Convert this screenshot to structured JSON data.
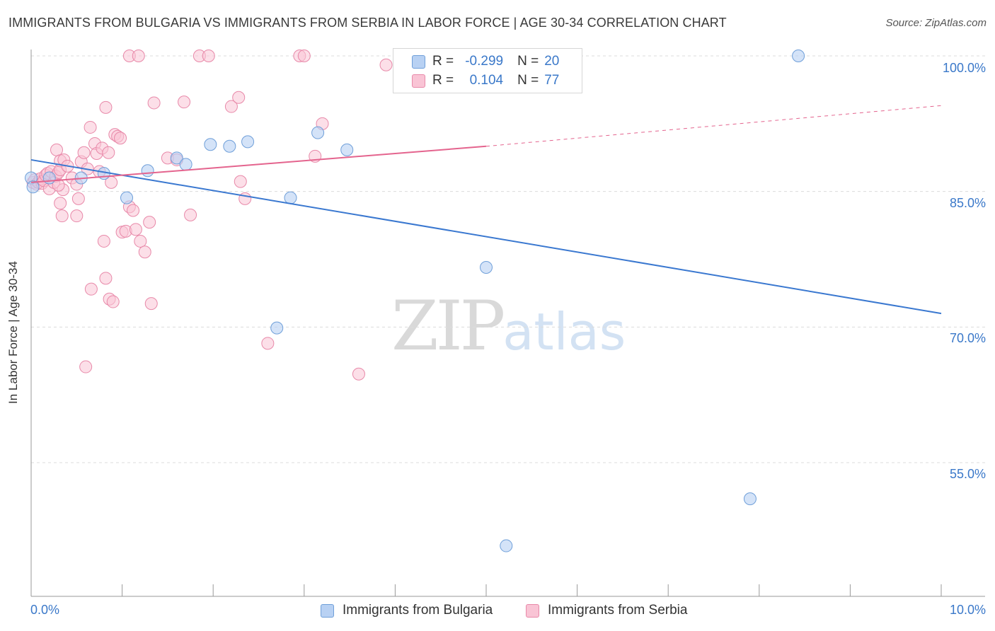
{
  "title": "IMMIGRANTS FROM BULGARIA VS IMMIGRANTS FROM SERBIA IN LABOR FORCE | AGE 30-34 CORRELATION CHART",
  "source": "Source: ZipAtlas.com",
  "watermark": {
    "zip": "ZIP",
    "atlas": "atlas"
  },
  "colors": {
    "bulgaria_fill": "#b8d1f3",
    "bulgaria_stroke": "#6f9fd9",
    "bulgaria_line": "#3a78d0",
    "serbia_fill": "#f9c4d5",
    "serbia_stroke": "#e889a9",
    "serbia_line": "#e4648e",
    "tick_text": "#3a78c9",
    "grid": "#dcdcdc"
  },
  "legend": {
    "rows": [
      {
        "r_label": "R =",
        "r_value": "-0.299",
        "n_label": "N =",
        "n_value": "20"
      },
      {
        "r_label": "R =",
        "r_value": "0.104",
        "n_label": "N =",
        "n_value": "77"
      }
    ]
  },
  "bottom_legend": {
    "bulgaria": "Immigrants from Bulgaria",
    "serbia": "Immigrants from Serbia"
  },
  "chart_data": {
    "type": "scatter",
    "title": "IMMIGRANTS FROM BULGARIA VS IMMIGRANTS FROM SERBIA IN LABOR FORCE | AGE 30-34 CORRELATION CHART",
    "xlabel": "",
    "ylabel": "In Labor Force | Age 30-34",
    "xlim": [
      0,
      10
    ],
    "ylim": [
      40,
      101
    ],
    "x_ticks": [
      "0.0%",
      "10.0%"
    ],
    "y_ticks": [
      "100.0%",
      "85.0%",
      "70.0%",
      "55.0%"
    ],
    "grid": true,
    "series": [
      {
        "name": "Immigrants from Bulgaria",
        "points": [
          [
            0.0,
            86.5
          ],
          [
            0.02,
            85.5
          ],
          [
            0.2,
            86.5
          ],
          [
            0.55,
            86.5
          ],
          [
            0.8,
            87.0
          ],
          [
            1.05,
            84.3
          ],
          [
            1.28,
            87.3
          ],
          [
            1.6,
            88.7
          ],
          [
            1.7,
            88.0
          ],
          [
            1.97,
            90.2
          ],
          [
            2.18,
            90.0
          ],
          [
            2.38,
            90.5
          ],
          [
            2.7,
            69.9
          ],
          [
            2.85,
            84.3
          ],
          [
            3.15,
            91.5
          ],
          [
            3.47,
            89.6
          ],
          [
            5.0,
            76.6
          ],
          [
            5.22,
            45.8
          ],
          [
            7.9,
            51.0
          ],
          [
            8.43,
            100.0
          ]
        ],
        "trend": {
          "x": [
            0.0,
            10.0
          ],
          "y": [
            88.5,
            71.5
          ]
        }
      },
      {
        "name": "Immigrants from Serbia",
        "points": [
          [
            0.02,
            86.0
          ],
          [
            0.04,
            86.3
          ],
          [
            0.06,
            85.8
          ],
          [
            0.08,
            86.0
          ],
          [
            0.1,
            86.4
          ],
          [
            0.12,
            85.9
          ],
          [
            0.14,
            86.2
          ],
          [
            0.16,
            86.8
          ],
          [
            0.18,
            87.0
          ],
          [
            0.2,
            85.3
          ],
          [
            0.22,
            87.2
          ],
          [
            0.25,
            86.0
          ],
          [
            0.27,
            86.7
          ],
          [
            0.3,
            87.1
          ],
          [
            0.32,
            87.4
          ],
          [
            0.35,
            85.2
          ],
          [
            0.28,
            89.6
          ],
          [
            0.32,
            88.4
          ],
          [
            0.36,
            88.5
          ],
          [
            0.4,
            87.8
          ],
          [
            0.45,
            86.5
          ],
          [
            0.5,
            85.8
          ],
          [
            0.55,
            88.3
          ],
          [
            0.58,
            89.3
          ],
          [
            0.62,
            87.5
          ],
          [
            0.65,
            92.1
          ],
          [
            0.7,
            90.3
          ],
          [
            0.72,
            89.2
          ],
          [
            0.75,
            87.2
          ],
          [
            0.78,
            89.8
          ],
          [
            0.82,
            94.3
          ],
          [
            0.85,
            89.3
          ],
          [
            0.88,
            86.0
          ],
          [
            0.92,
            91.3
          ],
          [
            0.95,
            91.1
          ],
          [
            0.98,
            90.9
          ],
          [
            1.0,
            80.5
          ],
          [
            1.04,
            80.6
          ],
          [
            1.08,
            83.3
          ],
          [
            1.12,
            82.9
          ],
          [
            1.15,
            80.8
          ],
          [
            1.2,
            79.5
          ],
          [
            1.25,
            78.3
          ],
          [
            0.3,
            85.7
          ],
          [
            0.32,
            83.7
          ],
          [
            0.34,
            82.3
          ],
          [
            0.5,
            82.3
          ],
          [
            0.52,
            84.2
          ],
          [
            0.8,
            79.5
          ],
          [
            0.82,
            75.4
          ],
          [
            0.86,
            73.1
          ],
          [
            0.9,
            72.8
          ],
          [
            0.66,
            74.2
          ],
          [
            0.6,
            65.6
          ],
          [
            1.3,
            81.6
          ],
          [
            1.35,
            94.8
          ],
          [
            1.5,
            88.7
          ],
          [
            1.6,
            88.5
          ],
          [
            1.68,
            94.9
          ],
          [
            1.75,
            82.4
          ],
          [
            1.85,
            100.0
          ],
          [
            1.95,
            100.0
          ],
          [
            2.2,
            94.4
          ],
          [
            2.28,
            95.4
          ],
          [
            2.3,
            86.1
          ],
          [
            2.35,
            84.2
          ],
          [
            2.95,
            100.0
          ],
          [
            3.0,
            100.0
          ],
          [
            3.12,
            88.9
          ],
          [
            3.2,
            92.5
          ],
          [
            3.9,
            99.0
          ],
          [
            4.07,
            100.0
          ],
          [
            1.08,
            100.0
          ],
          [
            1.18,
            100.0
          ],
          [
            1.32,
            72.6
          ],
          [
            2.6,
            68.2
          ],
          [
            3.6,
            64.8
          ]
        ],
        "trend": {
          "x": [
            0.0,
            5.0
          ],
          "y": [
            86.0,
            90.0
          ]
        },
        "trend_extension": {
          "x": [
            5.0,
            10.0
          ],
          "y": [
            90.0,
            94.5
          ]
        }
      }
    ]
  },
  "y_axis_title": "In Labor Force | Age 30-34"
}
